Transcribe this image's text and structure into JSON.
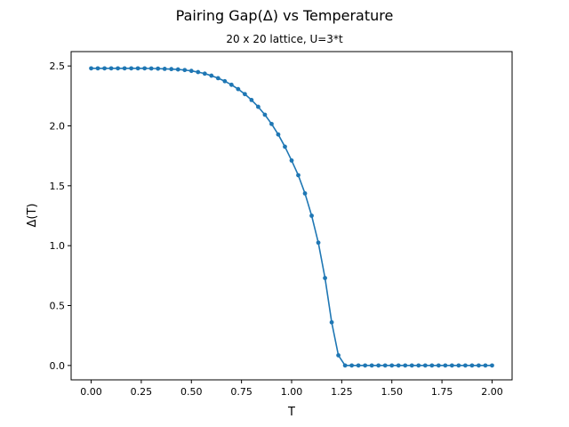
{
  "chart_data": {
    "type": "line",
    "title": "Pairing Gap(Δ) vs Temperature",
    "subtitle": "20 x 20 lattice, U=3*t",
    "xlabel": "T",
    "ylabel": "Δ(T)",
    "xlim": [
      -0.1,
      2.1
    ],
    "ylim": [
      -0.12,
      2.62
    ],
    "xticks": [
      "0.00",
      "0.25",
      "0.50",
      "0.75",
      "1.00",
      "1.25",
      "1.50",
      "1.75",
      "2.00"
    ],
    "yticks": [
      "0.0",
      "0.5",
      "1.0",
      "1.5",
      "2.0",
      "2.5"
    ],
    "grid": false,
    "color": "#1f77b4",
    "marker": "circle",
    "series": [
      {
        "x": [
          0.0,
          0.0333,
          0.0667,
          0.1,
          0.1333,
          0.1667,
          0.2,
          0.2333,
          0.2667,
          0.3,
          0.3333,
          0.3667,
          0.4,
          0.4333,
          0.4667,
          0.5,
          0.5333,
          0.5667,
          0.6,
          0.6333,
          0.6667,
          0.7,
          0.7333,
          0.7667,
          0.8,
          0.8333,
          0.8667,
          0.9,
          0.9333,
          0.9667,
          1.0,
          1.0333,
          1.0667,
          1.1,
          1.1333,
          1.1667,
          1.2,
          1.2333,
          1.2667,
          1.3,
          1.3333,
          1.3667,
          1.4,
          1.4333,
          1.4667,
          1.5,
          1.5333,
          1.5667,
          1.6,
          1.6333,
          1.6667,
          1.7,
          1.7333,
          1.7667,
          1.8,
          1.8333,
          1.8667,
          1.9,
          1.9333,
          1.9667,
          2.0
        ],
        "values": [
          2.48,
          2.48,
          2.48,
          2.48,
          2.48,
          2.48,
          2.48,
          2.48,
          2.48,
          2.479,
          2.478,
          2.476,
          2.474,
          2.471,
          2.466,
          2.459,
          2.449,
          2.436,
          2.419,
          2.398,
          2.373,
          2.343,
          2.307,
          2.265,
          2.216,
          2.159,
          2.093,
          2.016,
          1.928,
          1.826,
          1.711,
          1.588,
          1.436,
          1.25,
          1.025,
          0.73,
          0.36,
          0.085,
          0.0,
          0.0,
          0.0,
          0.0,
          0.0,
          0.0,
          0.0,
          0.0,
          0.0,
          0.0,
          0.0,
          0.0,
          0.0,
          0.0,
          0.0,
          0.0,
          0.0,
          0.0,
          0.0,
          0.0,
          0.0,
          0.0,
          0.0
        ]
      }
    ]
  }
}
